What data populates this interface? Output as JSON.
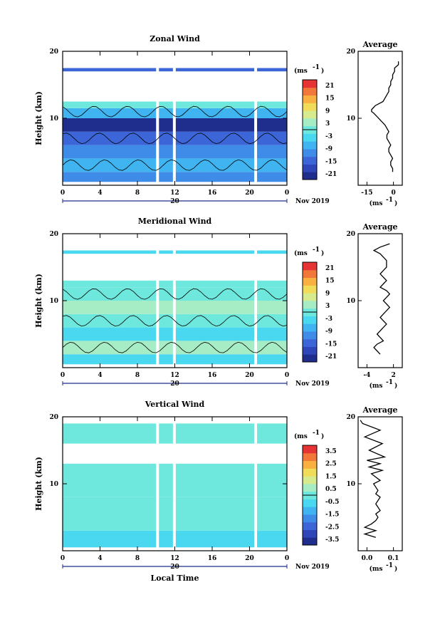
{
  "colors": {
    "scale": [
      "#1f2e8c",
      "#2e46b8",
      "#3c66d8",
      "#3f8ce8",
      "#3fb4f0",
      "#49d8f0",
      "#6ee8dc",
      "#a6ecc4",
      "#d6ea8e",
      "#f0dc58",
      "#f8b040",
      "#f2783a",
      "#e63434"
    ],
    "contour": "#000000",
    "missing": "#ffffff"
  },
  "chart_data": [
    {
      "id": "zonal",
      "type": "heatmap",
      "title": "Zonal Wind",
      "ylabel": "Height (km)",
      "y_ticks": [
        "20",
        "10"
      ],
      "x_ticks": [
        "0",
        "4",
        "8",
        "12",
        "16",
        "20",
        "0"
      ],
      "date_day": "20",
      "date_label": "Nov 2019",
      "colorbar_unit": "(ms",
      "unit_exp": "-1",
      "colorbar_ticks": [
        "21",
        "15",
        "9",
        "3",
        "-3",
        "-9",
        "-15",
        "-21"
      ],
      "colorbar_range": [
        -24,
        24
      ],
      "profile_title": "Average",
      "profile_xticks": [
        "-15",
        "0"
      ],
      "profile_xlim": [
        -20,
        3
      ],
      "profile_unit": "(ms",
      "profile_unit_exp": "-1",
      "profile_x_values": [
        -2,
        -2,
        -3,
        -3,
        -2,
        -3,
        -4,
        -4,
        -3,
        -4,
        -5,
        -5,
        -4,
        -5,
        -6,
        -7,
        -8,
        -9,
        -10,
        -11,
        -12,
        -13,
        -13,
        -12,
        -11,
        -9,
        -7,
        -6,
        -5,
        -4,
        -4,
        -3,
        -3,
        -2,
        -2,
        -1,
        -1,
        1,
        1
      ],
      "profile_y_values": [
        2,
        2.5,
        3,
        3.5,
        4,
        4.5,
        5,
        5.5,
        6,
        6.5,
        7,
        7.5,
        8,
        8.5,
        9,
        9.3,
        9.6,
        9.9,
        10.2,
        10.5,
        10.8,
        11.0,
        11.3,
        11.6,
        11.9,
        12.2,
        12.5,
        13.0,
        13.5,
        14.0,
        14.5,
        15.0,
        15.5,
        16.0,
        16.5,
        17.0,
        17.5,
        18.0,
        18.5
      ],
      "ylim": [
        0,
        20
      ],
      "xlim": [
        0,
        24
      ],
      "heatmap": [
        {
          "from": 0.5,
          "to": 2,
          "value": -12
        },
        {
          "from": 2,
          "to": 4,
          "value": -9
        },
        {
          "from": 4,
          "to": 6,
          "value": -12
        },
        {
          "from": 6,
          "to": 8,
          "value": -15
        },
        {
          "from": 8,
          "to": 10,
          "value": -21
        },
        {
          "from": 10,
          "to": 11.5,
          "value": -6
        },
        {
          "from": 11.5,
          "to": 12.5,
          "value": 0
        },
        {
          "from": 17,
          "to": 17.5,
          "value": -15
        }
      ]
    },
    {
      "id": "meridional",
      "type": "heatmap",
      "title": "Meridional Wind",
      "ylabel": "Height (km)",
      "y_ticks": [
        "20",
        "10"
      ],
      "x_ticks": [
        "0",
        "4",
        "8",
        "12",
        "16",
        "20",
        "0"
      ],
      "date_day": "20",
      "date_label": "Nov 2019",
      "colorbar_unit": "(ms",
      "unit_exp": "-1",
      "colorbar_ticks": [
        "21",
        "15",
        "9",
        "3",
        "-3",
        "-9",
        "-15",
        "-21"
      ],
      "colorbar_range": [
        -24,
        24
      ],
      "profile_title": "Average",
      "profile_xticks": [
        "-4",
        "2"
      ],
      "profile_xlim": [
        -4.5,
        2.5
      ],
      "profile_unit": "(ms",
      "profile_unit_exp": "-1",
      "profile_x_values": [
        -1,
        -1.5,
        -2,
        -1.5,
        -0.5,
        -1,
        -1.5,
        -1,
        -0.5,
        0,
        -0.5,
        -1,
        -0.5,
        0,
        0.5,
        0,
        -0.5,
        0,
        0.5,
        0,
        -1,
        -0.5,
        0,
        -0.5,
        -1,
        -0.5,
        0,
        0,
        -1,
        -2,
        -1,
        0.5
      ],
      "profile_y_values": [
        2,
        2.5,
        3,
        3.5,
        4,
        4.5,
        5,
        5.5,
        6,
        6.5,
        7,
        7.5,
        8,
        8.5,
        9,
        9.5,
        10,
        10.5,
        11,
        11.5,
        12,
        12.5,
        13,
        13.5,
        14,
        14.5,
        15,
        16,
        17,
        17.5,
        18,
        18.5
      ],
      "ylim": [
        0,
        20
      ],
      "xlim": [
        0,
        24
      ],
      "heatmap": [
        {
          "from": 0.5,
          "to": 2,
          "value": -3
        },
        {
          "from": 2,
          "to": 4,
          "value": 3
        },
        {
          "from": 4,
          "to": 6,
          "value": -3
        },
        {
          "from": 6,
          "to": 8,
          "value": 1
        },
        {
          "from": 8,
          "to": 10,
          "value": 3
        },
        {
          "from": 10,
          "to": 12,
          "value": 1
        },
        {
          "from": 12,
          "to": 13,
          "value": -1
        },
        {
          "from": 17,
          "to": 17.5,
          "value": -3
        }
      ]
    },
    {
      "id": "vertical",
      "type": "heatmap",
      "title": "Vertical Wind",
      "ylabel": "Height (km)",
      "y_ticks": [
        "20",
        "10"
      ],
      "x_ticks": [
        "0",
        "4",
        "8",
        "12",
        "16",
        "20",
        "0"
      ],
      "date_day": "20",
      "date_label": "Nov 2019",
      "xlabel": "Local Time",
      "colorbar_unit": "(ms",
      "unit_exp": "-1",
      "colorbar_ticks": [
        "3.5",
        "2.5",
        "1.5",
        "0.5",
        "-0.5",
        "-1.5",
        "-2.5",
        "-3.5"
      ],
      "colorbar_range": [
        -4,
        4
      ],
      "profile_title": "Average",
      "profile_xticks": [
        "0.0",
        "0.1"
      ],
      "profile_xlim": [
        -0.08,
        0.12
      ],
      "profile_unit": "(ms",
      "profile_unit_exp": "-1",
      "profile_x_values": [
        0.0,
        -0.05,
        0.0,
        -0.05,
        -0.02,
        0.0,
        0.01,
        0.0,
        0.02,
        0.01,
        0.0,
        0.01,
        0.02,
        0.0,
        0.01,
        0.0,
        -0.01,
        0.02,
        0.0,
        -0.02,
        0.03,
        -0.03,
        0.02,
        -0.04,
        0.04,
        -0.03,
        0.03,
        -0.05,
        0.02,
        -0.06,
        -0.07
      ],
      "profile_y_values": [
        2,
        2.5,
        3,
        3.5,
        4,
        4.5,
        5,
        5.5,
        6,
        6.5,
        7,
        7.5,
        8,
        8.5,
        9,
        9.5,
        10,
        10.5,
        11,
        11.5,
        12,
        12.5,
        13,
        13.5,
        14,
        15,
        16,
        17,
        18,
        19,
        19.5
      ],
      "ylim": [
        0,
        20
      ],
      "xlim": [
        0,
        24
      ],
      "heatmap": [
        {
          "from": 0.5,
          "to": 3,
          "value": -0.4
        },
        {
          "from": 3,
          "to": 8,
          "value": -0.2
        },
        {
          "from": 8,
          "to": 13,
          "value": -0.3
        },
        {
          "from": 16,
          "to": 19,
          "value": -0.3
        }
      ]
    }
  ]
}
